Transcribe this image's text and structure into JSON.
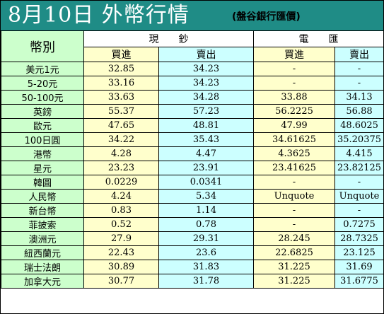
{
  "title": {
    "main": "8月10日 外幣行情",
    "sub": "(盤谷銀行匯價)"
  },
  "header": {
    "currency_label": "幣別",
    "cash_label": "現　　鈔",
    "wire_label": "電　　匯",
    "buy_label": "買進",
    "sell_label": "賣出"
  },
  "colors": {
    "title_bg": "#1f8c86",
    "currency_bg": "#ccffcc",
    "buy_bg": "#ffffcc",
    "sell_bg": "#ccffff"
  },
  "rates": [
    {
      "currency": "美元1元",
      "cash_buy": "32.85",
      "cash_sell": "34.23",
      "wire_buy": "-",
      "wire_sell": "-"
    },
    {
      "currency": "5-20元",
      "cash_buy": "33.16",
      "cash_sell": "34.23",
      "wire_buy": "-",
      "wire_sell": "-"
    },
    {
      "currency": "50-100元",
      "cash_buy": "33.63",
      "cash_sell": "34.28",
      "wire_buy": "33.88",
      "wire_sell": "34.13"
    },
    {
      "currency": "英鎊",
      "cash_buy": "55.37",
      "cash_sell": "57.23",
      "wire_buy": "56.2225",
      "wire_sell": "56.88"
    },
    {
      "currency": "歐元",
      "cash_buy": "47.65",
      "cash_sell": "48.81",
      "wire_buy": "47.99",
      "wire_sell": "48.6025"
    },
    {
      "currency": "100日圓",
      "cash_buy": "34.22",
      "cash_sell": "35.43",
      "wire_buy": "34.61625",
      "wire_sell": "35.20375"
    },
    {
      "currency": "港幣",
      "cash_buy": "4.28",
      "cash_sell": "4.47",
      "wire_buy": "4.3625",
      "wire_sell": "4.415"
    },
    {
      "currency": "星元",
      "cash_buy": "23.23",
      "cash_sell": "23.91",
      "wire_buy": "23.41625",
      "wire_sell": "23.82125"
    },
    {
      "currency": "韓圓",
      "cash_buy": "0.0229",
      "cash_sell": "0.0341",
      "wire_buy": "-",
      "wire_sell": "-"
    },
    {
      "currency": "人民幣",
      "cash_buy": "4.24",
      "cash_sell": "5.34",
      "wire_buy": "Unquote",
      "wire_sell": "Unquote"
    },
    {
      "currency": "新台幣",
      "cash_buy": "0.83",
      "cash_sell": "1.14",
      "wire_buy": "-",
      "wire_sell": "-"
    },
    {
      "currency": "菲披索",
      "cash_buy": "0.52",
      "cash_sell": "0.78",
      "wire_buy": "-",
      "wire_sell": "0.7275"
    },
    {
      "currency": "澳洲元",
      "cash_buy": "27.9",
      "cash_sell": "29.31",
      "wire_buy": "28.245",
      "wire_sell": "28.7325"
    },
    {
      "currency": "紐西蘭元",
      "cash_buy": "22.43",
      "cash_sell": "23.6",
      "wire_buy": "22.6825",
      "wire_sell": "23.125"
    },
    {
      "currency": "瑞士法朗",
      "cash_buy": "30.89",
      "cash_sell": "31.83",
      "wire_buy": "31.225",
      "wire_sell": "31.69"
    },
    {
      "currency": "加拿大元",
      "cash_buy": "30.77",
      "cash_sell": "31.78",
      "wire_buy": "31.225",
      "wire_sell": "31.6775"
    }
  ]
}
